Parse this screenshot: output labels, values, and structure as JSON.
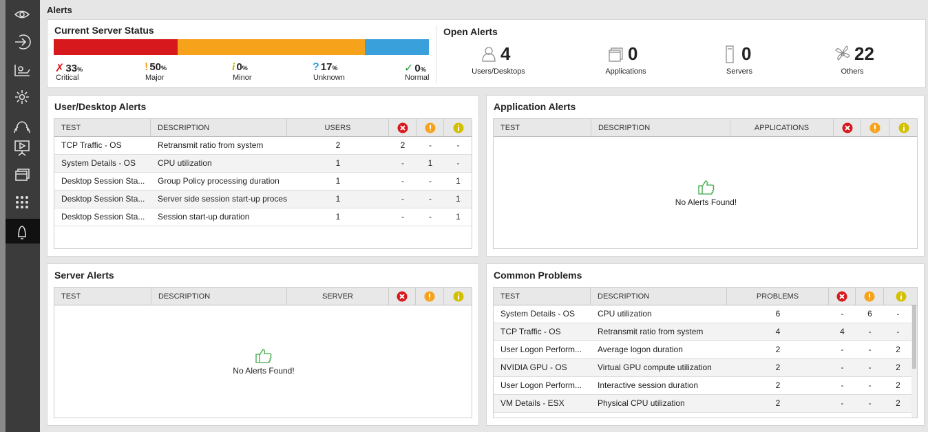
{
  "header": {
    "title": "Alerts"
  },
  "server_status": {
    "title": "Current Server Status",
    "items": [
      {
        "symbol": "✗",
        "value": 33,
        "unit": "%",
        "label": "Critical",
        "color": "#d7181c"
      },
      {
        "symbol": "!",
        "value": 50,
        "unit": "%",
        "label": "Major",
        "color": "#f7a21b"
      },
      {
        "symbol": "i",
        "value": 0,
        "unit": "%",
        "label": "Minor",
        "color": "#c9b400"
      },
      {
        "symbol": "?",
        "value": 17,
        "unit": "%",
        "label": "Unknown",
        "color": "#3aa0dc"
      },
      {
        "symbol": "✓",
        "value": 0,
        "unit": "%",
        "label": "Normal",
        "color": "#2e9e3a"
      }
    ]
  },
  "open_alerts": {
    "title": "Open Alerts",
    "items": [
      {
        "count": 4,
        "label": "Users/Desktops"
      },
      {
        "count": 0,
        "label": "Applications"
      },
      {
        "count": 0,
        "label": "Servers"
      },
      {
        "count": 22,
        "label": "Others"
      }
    ]
  },
  "user_desktop_alerts": {
    "title": "User/Desktop Alerts",
    "columns": [
      "TEST",
      "DESCRIPTION",
      "USERS"
    ],
    "rows": [
      [
        "TCP Traffic - OS",
        "Retransmit ratio from system",
        2,
        2,
        "-",
        "-"
      ],
      [
        "System Details - OS",
        "CPU utilization",
        1,
        "-",
        1,
        "-"
      ],
      [
        "Desktop Session Sta...",
        "Group Policy processing duration",
        1,
        "-",
        "-",
        1
      ],
      [
        "Desktop Session Sta...",
        "Server side session start-up proces",
        1,
        "-",
        "-",
        1
      ],
      [
        "Desktop Session Sta...",
        "Session start-up duration",
        1,
        "-",
        "-",
        1
      ]
    ]
  },
  "application_alerts": {
    "title": "Application Alerts",
    "columns": [
      "TEST",
      "DESCRIPTION",
      "APPLICATIONS"
    ],
    "rows": [],
    "empty_message": "No Alerts Found!"
  },
  "server_alerts": {
    "title": "Server Alerts",
    "columns": [
      "TEST",
      "DESCRIPTION",
      "SERVER"
    ],
    "rows": [],
    "empty_message": "No Alerts Found!"
  },
  "common_problems": {
    "title": "Common Problems",
    "columns": [
      "TEST",
      "DESCRIPTION",
      "PROBLEMS"
    ],
    "rows": [
      [
        "System Details - OS",
        "CPU utilization",
        6,
        "-",
        6,
        "-"
      ],
      [
        "TCP Traffic - OS",
        "Retransmit ratio from system",
        4,
        4,
        "-",
        "-"
      ],
      [
        "User Logon Perform...",
        "Average logon duration",
        2,
        "-",
        "-",
        2
      ],
      [
        "NVIDIA GPU - OS",
        "Virtual GPU compute utilization",
        2,
        "-",
        "-",
        2
      ],
      [
        "User Logon Perform...",
        "Interactive session duration",
        2,
        "-",
        "-",
        2
      ],
      [
        "VM Details - ESX",
        "Physical CPU utilization",
        2,
        "-",
        "-",
        2
      ]
    ]
  }
}
